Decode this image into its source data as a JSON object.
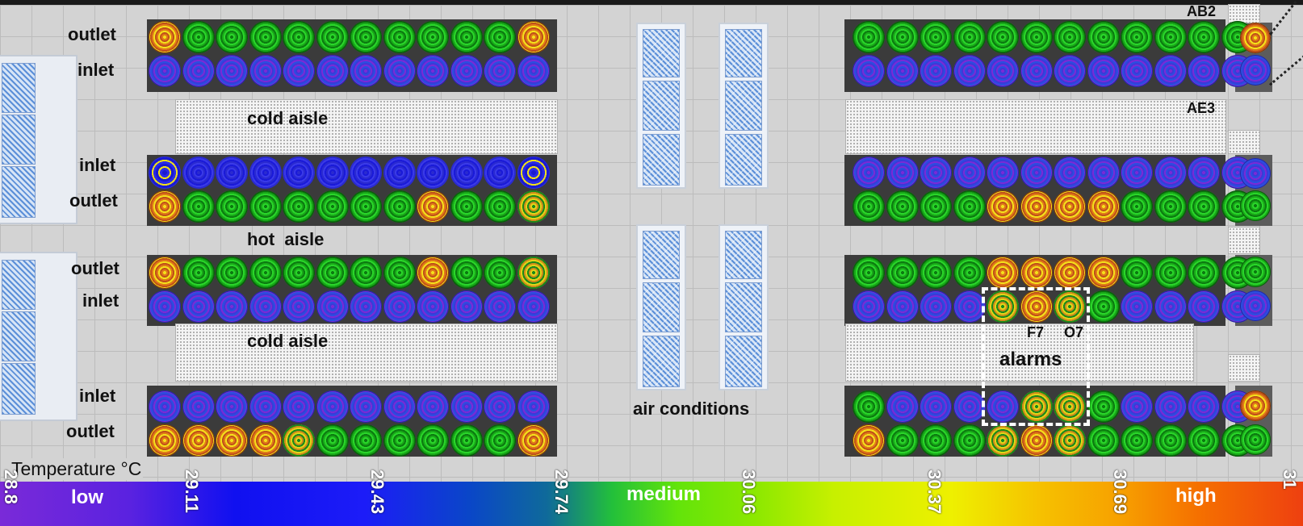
{
  "labels": {
    "outlet": "outlet",
    "inlet": "inlet",
    "cold_aisle": "cold aisle",
    "hot_aisle": "hot  aisle",
    "air_conditions": "air conditions",
    "alarms": "alarms",
    "ab2": "AB2",
    "ae3": "AE3",
    "f7": "F7",
    "o7": "O7"
  },
  "legend": {
    "title": "Temperature °C",
    "low": "low",
    "medium": "medium",
    "high": "high",
    "ticks": [
      "28.8",
      "29.11",
      "29.43",
      "29.74",
      "30.06",
      "30.37",
      "30.69",
      "31"
    ]
  },
  "colors": {
    "cold": "#3a3ad8",
    "normal": "#2ad62a",
    "hot": "#e07a18",
    "alarm_box": "#ffffff"
  },
  "sensor_rows": {
    "left_row1_outlet": [
      "ring-hot",
      "green",
      "green",
      "green",
      "green",
      "green",
      "green",
      "green",
      "green",
      "green",
      "green",
      "hot"
    ],
    "left_row1_inlet": [
      "cold",
      "cold",
      "cold",
      "cold",
      "cold",
      "cold",
      "cold",
      "cold",
      "cold",
      "cold",
      "cold",
      "cold"
    ],
    "left_row2_inlet": [
      "ring",
      "deep",
      "deep",
      "deep",
      "deep",
      "deep",
      "deep",
      "deep",
      "deep",
      "deep",
      "deep",
      "ring"
    ],
    "left_row2_outlet": [
      "hot",
      "green",
      "green",
      "green",
      "green",
      "green",
      "green",
      "green",
      "hot",
      "green",
      "green",
      "warm"
    ],
    "left_row3_outlet": [
      "hot",
      "green",
      "green",
      "green",
      "green",
      "green",
      "green",
      "green",
      "hot",
      "green",
      "green",
      "warm"
    ],
    "left_row3_inlet": [
      "cold",
      "cold",
      "cold",
      "cold",
      "cold",
      "cold",
      "cold",
      "cold",
      "cold",
      "cold",
      "cold",
      "cold"
    ],
    "left_row4_inlet": [
      "cold",
      "cold",
      "cold",
      "cold",
      "cold",
      "cold",
      "cold",
      "cold",
      "cold",
      "cold",
      "cold",
      "cold"
    ],
    "left_row4_outlet": [
      "hot",
      "hot",
      "hot",
      "hot",
      "warm",
      "green",
      "green",
      "green",
      "green",
      "green",
      "green",
      "hot"
    ],
    "right_row1_outlet": [
      "green",
      "green",
      "green",
      "green",
      "green",
      "green",
      "green",
      "green",
      "green",
      "green",
      "green",
      "green"
    ],
    "right_row1_inlet": [
      "cold",
      "cold",
      "cold",
      "cold",
      "cold",
      "cold",
      "cold",
      "cold",
      "cold",
      "cold",
      "cold",
      "cold"
    ],
    "right_row2_inlet": [
      "cold",
      "cold",
      "cold",
      "cold",
      "cold",
      "cold",
      "cold",
      "cold",
      "cold",
      "cold",
      "cold",
      "cold"
    ],
    "right_row2_outlet": [
      "green",
      "green",
      "green",
      "green",
      "hot",
      "hot",
      "hot",
      "hot",
      "green",
      "green",
      "green",
      "green"
    ],
    "right_row3_outlet": [
      "green",
      "green",
      "green",
      "green",
      "hot",
      "hot",
      "hot",
      "hot",
      "green",
      "green",
      "green",
      "green"
    ],
    "right_row3_inlet": [
      "cold",
      "cold",
      "cold",
      "cold",
      "warm",
      "hot",
      "warm",
      "green",
      "cold",
      "cold",
      "cold",
      "cold"
    ],
    "right_row4_inlet": [
      "green",
      "cold",
      "cold",
      "cold",
      "cold",
      "warm",
      "warm",
      "green",
      "cold",
      "cold",
      "cold",
      "cold"
    ],
    "right_row4_outlet": [
      "hot",
      "green",
      "green",
      "green",
      "warm",
      "hot",
      "warm",
      "green",
      "green",
      "green",
      "green",
      "green"
    ],
    "far_right": [
      "hot",
      "cold",
      "cold",
      "green",
      "green",
      "cold",
      "hot",
      "green"
    ]
  }
}
